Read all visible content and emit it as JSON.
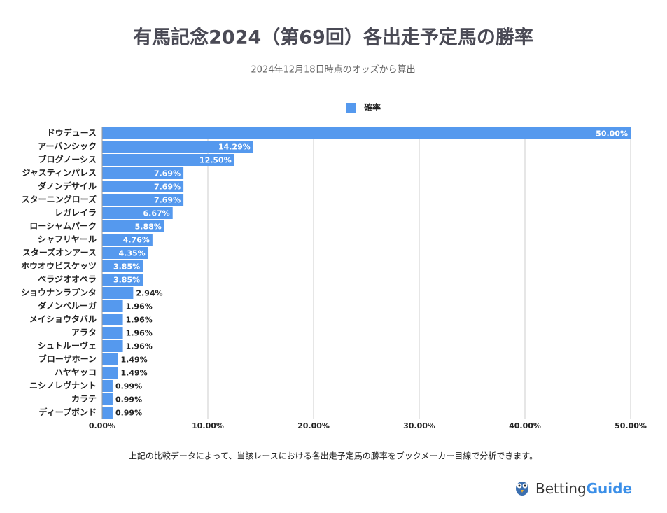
{
  "chart_data": {
    "type": "barh",
    "title": "有馬記念2024（第69回）各出走予定馬の勝率",
    "subtitle": "2024年12月18日時点のオッズから算出",
    "legend": "top",
    "grid": true,
    "categories": [
      "ドウデュース",
      "アーバンシック",
      "ブログノーシス",
      "ジャスティンパレス",
      "ダノンデサイル",
      "スターニングローズ",
      "レガレイラ",
      "ローシャムパーク",
      "シャフリヤール",
      "スターズオンアース",
      "ホウオウビスケッツ",
      "ベラジオオペラ",
      "ショウナンラプンタ",
      "ダノンベルーガ",
      "メイショウタバル",
      "アラタ",
      "シュトルーヴェ",
      "ブローザホーン",
      "ハヤヤッコ",
      "ニシノレヴナント",
      "カラテ",
      "ディープボンド"
    ],
    "series": [
      {
        "name": "確率",
        "color": "#5599ee",
        "values": [
          50,
          14.29,
          12.5,
          7.69,
          7.69,
          7.69,
          6.67,
          5.88,
          4.76,
          4.35,
          3.85,
          3.85,
          2.94,
          1.96,
          1.96,
          1.96,
          1.96,
          1.49,
          1.49,
          0.99,
          0.99,
          0.99
        ],
        "value_labels": [
          "50.00%",
          "14.29%",
          "12.50%",
          "7.69%",
          "7.69%",
          "7.69%",
          "6.67%",
          "5.88%",
          "4.76%",
          "4.35%",
          "3.85%",
          "3.85%",
          "2.94%",
          "1.96%",
          "1.96%",
          "1.96%",
          "1.96%",
          "1.49%",
          "1.49%",
          "0.99%",
          "0.99%",
          "0.99%"
        ]
      }
    ],
    "xlim": [
      0,
      50
    ],
    "xticks": [
      {
        "value": 0,
        "label": "0.00%"
      },
      {
        "value": 10,
        "label": "10.00%"
      },
      {
        "value": 20,
        "label": "20.00%"
      },
      {
        "value": 30,
        "label": "30.00%"
      },
      {
        "value": 40,
        "label": "40.00%"
      },
      {
        "value": 50,
        "label": "50.00%"
      }
    ],
    "note": "上記の比較データによって、当該レースにおける各出走予定馬の勝率をブックメーカー目線で分析できます。",
    "brand": [
      "Betting",
      "Guide"
    ]
  }
}
